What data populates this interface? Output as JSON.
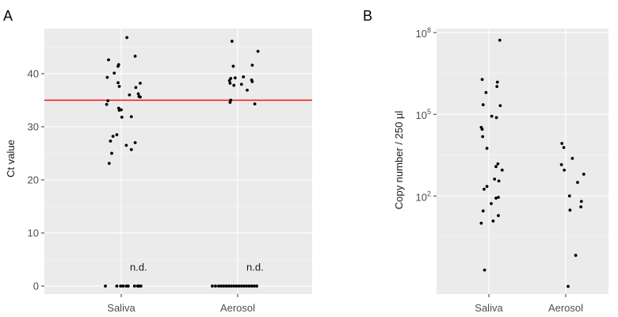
{
  "chart_data": [
    {
      "panel_label": "A",
      "type": "scatter",
      "subtype": "jitter-strip",
      "categories": [
        "Saliva",
        "Aerosol"
      ],
      "ylabel": "Ct value",
      "xlabel": "",
      "ylim": [
        -1.5,
        48.5
      ],
      "yticks": [
        0,
        10,
        20,
        30,
        40
      ],
      "ytick_labels": [
        "0",
        "10",
        "20",
        "30",
        "40"
      ],
      "grid": true,
      "reference_line": {
        "y": 35,
        "color": "#ff0000"
      },
      "annotations": [
        {
          "category": "Saliva",
          "text": "n.d.",
          "y": 2.3
        },
        {
          "category": "Aerosol",
          "text": "n.d.",
          "y": 2.3
        }
      ],
      "series": [
        {
          "name": "Saliva",
          "values": [
            {
              "j": -0.22,
              "y": 39.3
            },
            {
              "j": -0.2,
              "y": 42.6
            },
            {
              "j": -0.11,
              "y": 40.1
            },
            {
              "j": -0.05,
              "y": 41.4
            },
            {
              "j": -0.04,
              "y": 41.7
            },
            {
              "j": 0.09,
              "y": 46.8
            },
            {
              "j": 0.22,
              "y": 43.3
            },
            {
              "j": 0.3,
              "y": 38.2
            },
            {
              "j": 0.27,
              "y": 36.2
            },
            {
              "j": 0.28,
              "y": 35.7
            },
            {
              "j": 0.3,
              "y": 35.6
            },
            {
              "j": 0.23,
              "y": 37.4
            },
            {
              "j": 0.13,
              "y": 36.0
            },
            {
              "j": -0.05,
              "y": 38.3
            },
            {
              "j": -0.03,
              "y": 37.6
            },
            {
              "j": -0.23,
              "y": 34.2
            },
            {
              "j": -0.21,
              "y": 34.9
            },
            {
              "j": -0.04,
              "y": 33.5
            },
            {
              "j": -0.03,
              "y": 33.1
            },
            {
              "j": 0.0,
              "y": 33.2
            },
            {
              "j": 0.01,
              "y": 31.8
            },
            {
              "j": 0.16,
              "y": 31.9
            },
            {
              "j": -0.07,
              "y": 28.5
            },
            {
              "j": -0.13,
              "y": 28.2
            },
            {
              "j": -0.17,
              "y": 27.3
            },
            {
              "j": -0.15,
              "y": 25.0
            },
            {
              "j": -0.19,
              "y": 23.1
            },
            {
              "j": 0.08,
              "y": 26.5
            },
            {
              "j": 0.16,
              "y": 25.7
            },
            {
              "j": 0.22,
              "y": 27.0
            },
            {
              "j": -0.25,
              "y": 0
            },
            {
              "j": -0.07,
              "y": 0
            },
            {
              "j": -0.01,
              "y": 0
            },
            {
              "j": 0.03,
              "y": 0
            },
            {
              "j": 0.08,
              "y": 0
            },
            {
              "j": 0.11,
              "y": 0
            },
            {
              "j": 0.21,
              "y": 0
            },
            {
              "j": 0.26,
              "y": 0
            },
            {
              "j": 0.28,
              "y": 0
            },
            {
              "j": 0.31,
              "y": 0
            }
          ]
        },
        {
          "name": "Aerosol",
          "values": [
            {
              "j": -0.09,
              "y": 46.1
            },
            {
              "j": 0.32,
              "y": 44.2
            },
            {
              "j": -0.07,
              "y": 41.4
            },
            {
              "j": 0.23,
              "y": 41.6
            },
            {
              "j": -0.11,
              "y": 39.1
            },
            {
              "j": -0.13,
              "y": 38.7
            },
            {
              "j": -0.12,
              "y": 38.2
            },
            {
              "j": -0.04,
              "y": 39.2
            },
            {
              "j": -0.06,
              "y": 37.8
            },
            {
              "j": 0.09,
              "y": 39.4
            },
            {
              "j": 0.22,
              "y": 38.8
            },
            {
              "j": 0.23,
              "y": 38.5
            },
            {
              "j": 0.06,
              "y": 38.0
            },
            {
              "j": 0.15,
              "y": 36.9
            },
            {
              "j": -0.11,
              "y": 35.0
            },
            {
              "j": -0.12,
              "y": 34.6
            },
            {
              "j": 0.27,
              "y": 34.3
            },
            {
              "j": -0.4,
              "y": 0
            },
            {
              "j": -0.35,
              "y": 0
            },
            {
              "j": -0.3,
              "y": 0
            },
            {
              "j": -0.26,
              "y": 0
            },
            {
              "j": -0.22,
              "y": 0
            },
            {
              "j": -0.18,
              "y": 0
            },
            {
              "j": -0.14,
              "y": 0
            },
            {
              "j": -0.1,
              "y": 0
            },
            {
              "j": -0.06,
              "y": 0
            },
            {
              "j": -0.02,
              "y": 0
            },
            {
              "j": 0.02,
              "y": 0
            },
            {
              "j": 0.06,
              "y": 0
            },
            {
              "j": 0.1,
              "y": 0
            },
            {
              "j": 0.14,
              "y": 0
            },
            {
              "j": 0.18,
              "y": 0
            },
            {
              "j": 0.22,
              "y": 0
            },
            {
              "j": 0.26,
              "y": 0
            },
            {
              "j": 0.3,
              "y": 0
            }
          ]
        }
      ]
    },
    {
      "panel_label": "B",
      "type": "scatter",
      "subtype": "jitter-strip",
      "categories": [
        "Saliva",
        "Aerosol"
      ],
      "ylabel": "Copy number / 250 µl",
      "xlabel": "",
      "yscale": "log10",
      "ylim_log10": [
        -1.6,
        8.15
      ],
      "yticks_log10": [
        2,
        5,
        8
      ],
      "ytick_labels": [
        {
          "base": "10",
          "exp": "2"
        },
        {
          "base": "10",
          "exp": "5"
        },
        {
          "base": "10",
          "exp": "8"
        }
      ],
      "grid": true,
      "series": [
        {
          "name": "Saliva",
          "log10_values": [
            {
              "j": 0.23,
              "y": 7.72
            },
            {
              "j": -0.14,
              "y": 6.28
            },
            {
              "j": 0.18,
              "y": 6.18
            },
            {
              "j": 0.17,
              "y": 6.02
            },
            {
              "j": -0.06,
              "y": 5.8
            },
            {
              "j": -0.12,
              "y": 5.35
            },
            {
              "j": 0.24,
              "y": 5.32
            },
            {
              "j": 0.06,
              "y": 4.93
            },
            {
              "j": 0.16,
              "y": 4.88
            },
            {
              "j": -0.16,
              "y": 4.52
            },
            {
              "j": -0.14,
              "y": 4.45
            },
            {
              "j": -0.13,
              "y": 4.18
            },
            {
              "j": -0.04,
              "y": 3.75
            },
            {
              "j": 0.19,
              "y": 3.18
            },
            {
              "j": 0.15,
              "y": 3.08
            },
            {
              "j": 0.28,
              "y": 2.95
            },
            {
              "j": 0.12,
              "y": 2.62
            },
            {
              "j": 0.21,
              "y": 2.55
            },
            {
              "j": -0.04,
              "y": 2.35
            },
            {
              "j": -0.1,
              "y": 2.25
            },
            {
              "j": 0.2,
              "y": 1.95
            },
            {
              "j": 0.15,
              "y": 1.92
            },
            {
              "j": 0.05,
              "y": 1.72
            },
            {
              "j": -0.12,
              "y": 1.45
            },
            {
              "j": 0.2,
              "y": 1.28
            },
            {
              "j": 0.09,
              "y": 1.08
            },
            {
              "j": -0.16,
              "y": 1.0
            },
            {
              "j": -0.09,
              "y": -0.72
            }
          ]
        },
        {
          "name": "Aerosol",
          "log10_values": [
            {
              "j": -0.08,
              "y": 3.93
            },
            {
              "j": -0.04,
              "y": 3.78
            },
            {
              "j": 0.14,
              "y": 3.38
            },
            {
              "j": -0.09,
              "y": 3.15
            },
            {
              "j": -0.03,
              "y": 2.95
            },
            {
              "j": 0.38,
              "y": 2.8
            },
            {
              "j": 0.25,
              "y": 2.5
            },
            {
              "j": 0.08,
              "y": 2.0
            },
            {
              "j": 0.33,
              "y": 1.8
            },
            {
              "j": 0.32,
              "y": 1.6
            },
            {
              "j": 0.09,
              "y": 1.48
            },
            {
              "j": 0.21,
              "y": -0.18
            },
            {
              "j": 0.05,
              "y": -1.32
            }
          ]
        }
      ]
    }
  ]
}
